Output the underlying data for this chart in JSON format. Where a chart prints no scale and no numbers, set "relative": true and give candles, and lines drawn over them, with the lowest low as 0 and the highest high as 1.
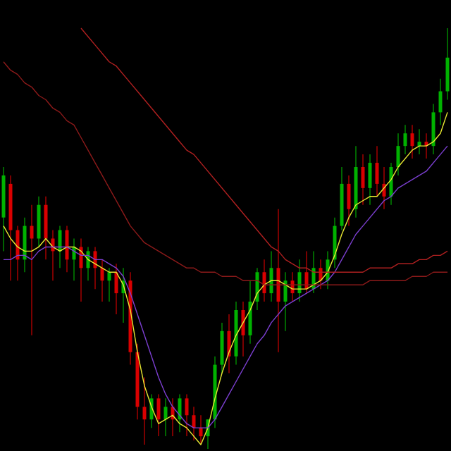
{
  "chart_data": {
    "type": "candlestick",
    "relative": true,
    "categories": [
      null,
      null,
      null,
      null,
      null,
      null,
      null,
      null,
      null,
      null,
      null,
      null,
      null,
      null,
      null,
      null,
      null,
      null,
      null,
      null,
      null,
      null,
      null,
      null,
      null,
      null,
      null,
      null,
      null,
      null,
      null,
      null,
      null,
      null,
      null,
      null,
      null,
      null,
      null,
      null,
      null,
      null,
      null,
      null,
      null,
      null,
      null,
      null,
      null,
      null,
      null,
      null,
      null,
      null,
      null,
      null,
      null,
      null,
      null,
      null,
      null,
      null,
      null,
      null
    ],
    "ohlc": [
      [
        0.55,
        0.67,
        0.47,
        0.65
      ],
      [
        0.63,
        0.65,
        0.4,
        0.52
      ],
      [
        0.52,
        0.53,
        0.4,
        0.45
      ],
      [
        0.45,
        0.55,
        0.42,
        0.53
      ],
      [
        0.53,
        0.58,
        0.27,
        0.5
      ],
      [
        0.5,
        0.6,
        0.48,
        0.58
      ],
      [
        0.58,
        0.6,
        0.45,
        0.5
      ],
      [
        0.5,
        0.52,
        0.4,
        0.47
      ],
      [
        0.47,
        0.53,
        0.43,
        0.52
      ],
      [
        0.52,
        0.53,
        0.42,
        0.45
      ],
      [
        0.45,
        0.5,
        0.4,
        0.48
      ],
      [
        0.48,
        0.5,
        0.35,
        0.43
      ],
      [
        0.43,
        0.48,
        0.4,
        0.47
      ],
      [
        0.47,
        0.48,
        0.38,
        0.43
      ],
      [
        0.43,
        0.45,
        0.35,
        0.4
      ],
      [
        0.4,
        0.43,
        0.35,
        0.42
      ],
      [
        0.42,
        0.44,
        0.32,
        0.37
      ],
      [
        0.37,
        0.43,
        0.3,
        0.4
      ],
      [
        0.4,
        0.42,
        0.2,
        0.23
      ],
      [
        0.23,
        0.25,
        0.07,
        0.1
      ],
      [
        0.1,
        0.17,
        0.01,
        0.07
      ],
      [
        0.07,
        0.13,
        0.05,
        0.12
      ],
      [
        0.12,
        0.13,
        0.03,
        0.07
      ],
      [
        0.07,
        0.12,
        0.03,
        0.1
      ],
      [
        0.1,
        0.12,
        0.03,
        0.07
      ],
      [
        0.07,
        0.13,
        0.04,
        0.12
      ],
      [
        0.12,
        0.13,
        0.03,
        0.08
      ],
      [
        0.08,
        0.1,
        0.02,
        0.05
      ],
      [
        0.05,
        0.08,
        0.01,
        0.03
      ],
      [
        0.03,
        0.07,
        0.0,
        0.07
      ],
      [
        0.07,
        0.22,
        0.05,
        0.2
      ],
      [
        0.2,
        0.3,
        0.18,
        0.28
      ],
      [
        0.28,
        0.32,
        0.18,
        0.22
      ],
      [
        0.22,
        0.35,
        0.2,
        0.33
      ],
      [
        0.33,
        0.35,
        0.22,
        0.27
      ],
      [
        0.27,
        0.4,
        0.25,
        0.35
      ],
      [
        0.35,
        0.43,
        0.33,
        0.42
      ],
      [
        0.42,
        0.45,
        0.35,
        0.37
      ],
      [
        0.37,
        0.47,
        0.35,
        0.43
      ],
      [
        0.43,
        0.57,
        0.23,
        0.35
      ],
      [
        0.35,
        0.42,
        0.28,
        0.4
      ],
      [
        0.4,
        0.42,
        0.35,
        0.37
      ],
      [
        0.37,
        0.45,
        0.35,
        0.42
      ],
      [
        0.42,
        0.47,
        0.37,
        0.38
      ],
      [
        0.38,
        0.47,
        0.37,
        0.43
      ],
      [
        0.43,
        0.45,
        0.38,
        0.4
      ],
      [
        0.4,
        0.47,
        0.38,
        0.45
      ],
      [
        0.45,
        0.55,
        0.43,
        0.53
      ],
      [
        0.53,
        0.67,
        0.52,
        0.63
      ],
      [
        0.63,
        0.65,
        0.53,
        0.57
      ],
      [
        0.57,
        0.72,
        0.55,
        0.67
      ],
      [
        0.67,
        0.7,
        0.58,
        0.62
      ],
      [
        0.62,
        0.7,
        0.58,
        0.68
      ],
      [
        0.68,
        0.72,
        0.6,
        0.63
      ],
      [
        0.63,
        0.67,
        0.57,
        0.6
      ],
      [
        0.6,
        0.68,
        0.58,
        0.67
      ],
      [
        0.67,
        0.75,
        0.65,
        0.72
      ],
      [
        0.72,
        0.77,
        0.7,
        0.75
      ],
      [
        0.75,
        0.77,
        0.69,
        0.72
      ],
      [
        0.72,
        0.76,
        0.7,
        0.73
      ],
      [
        0.73,
        0.75,
        0.69,
        0.72
      ],
      [
        0.72,
        0.82,
        0.7,
        0.8
      ],
      [
        0.8,
        0.88,
        0.77,
        0.85
      ],
      [
        0.85,
        1.0,
        0.83,
        0.93
      ]
    ],
    "series": [
      {
        "type": "line",
        "color": "#e8e832",
        "values": [
          0.53,
          0.5,
          0.48,
          0.47,
          0.47,
          0.48,
          0.5,
          0.48,
          0.47,
          0.48,
          0.48,
          0.47,
          0.45,
          0.44,
          0.43,
          0.42,
          0.42,
          0.39,
          0.33,
          0.23,
          0.15,
          0.1,
          0.06,
          0.07,
          0.08,
          0.06,
          0.05,
          0.03,
          0.01,
          0.05,
          0.12,
          0.18,
          0.23,
          0.27,
          0.3,
          0.33,
          0.37,
          0.39,
          0.4,
          0.4,
          0.39,
          0.38,
          0.38,
          0.38,
          0.39,
          0.4,
          0.42,
          0.46,
          0.51,
          0.55,
          0.58,
          0.59,
          0.6,
          0.6,
          0.62,
          0.64,
          0.67,
          0.69,
          0.71,
          0.72,
          0.72,
          0.73,
          0.75,
          0.8
        ]
      },
      {
        "type": "line",
        "color": "#7b3fd0",
        "values": [
          0.45,
          0.45,
          0.46,
          0.46,
          0.45,
          0.47,
          0.48,
          0.48,
          0.48,
          0.48,
          0.47,
          0.46,
          0.46,
          0.45,
          0.45,
          0.44,
          0.43,
          0.41,
          0.37,
          0.32,
          0.27,
          0.22,
          0.17,
          0.13,
          0.1,
          0.08,
          0.06,
          0.05,
          0.05,
          0.05,
          0.07,
          0.1,
          0.13,
          0.16,
          0.19,
          0.22,
          0.25,
          0.27,
          0.3,
          0.32,
          0.34,
          0.35,
          0.36,
          0.37,
          0.38,
          0.39,
          0.4,
          0.42,
          0.45,
          0.48,
          0.51,
          0.53,
          0.55,
          0.57,
          0.59,
          0.6,
          0.62,
          0.63,
          0.64,
          0.65,
          0.66,
          0.68,
          0.7,
          0.72
        ]
      },
      {
        "type": "line",
        "color": "#b02020",
        "values": [
          null,
          null,
          null,
          null,
          null,
          null,
          null,
          null,
          null,
          null,
          null,
          1.0,
          0.98,
          0.96,
          0.94,
          0.92,
          0.91,
          0.89,
          0.87,
          0.85,
          0.83,
          0.81,
          0.79,
          0.77,
          0.75,
          0.73,
          0.71,
          0.7,
          0.68,
          0.66,
          0.64,
          0.62,
          0.6,
          0.58,
          0.56,
          0.54,
          0.52,
          0.5,
          0.48,
          0.47,
          0.45,
          0.44,
          0.43,
          0.43,
          0.42,
          0.42,
          0.42,
          0.42,
          0.42,
          0.42,
          0.42,
          0.42,
          0.43,
          0.43,
          0.43,
          0.43,
          0.44,
          0.44,
          0.44,
          0.45,
          0.45,
          0.46,
          0.46,
          0.47
        ]
      },
      {
        "type": "line",
        "color": "#8c1a1a",
        "values": [
          0.92,
          0.9,
          0.89,
          0.87,
          0.86,
          0.84,
          0.83,
          0.81,
          0.8,
          0.78,
          0.77,
          0.74,
          0.71,
          0.68,
          0.65,
          0.62,
          0.59,
          0.56,
          0.53,
          0.51,
          0.49,
          0.48,
          0.47,
          0.46,
          0.45,
          0.44,
          0.43,
          0.43,
          0.42,
          0.42,
          0.42,
          0.41,
          0.41,
          0.41,
          0.4,
          0.4,
          0.4,
          0.39,
          0.39,
          0.39,
          0.39,
          0.39,
          0.39,
          0.39,
          0.39,
          0.39,
          0.39,
          0.39,
          0.39,
          0.39,
          0.39,
          0.39,
          0.4,
          0.4,
          0.4,
          0.4,
          0.4,
          0.4,
          0.41,
          0.41,
          0.41,
          0.42,
          0.42,
          0.42
        ]
      }
    ]
  }
}
